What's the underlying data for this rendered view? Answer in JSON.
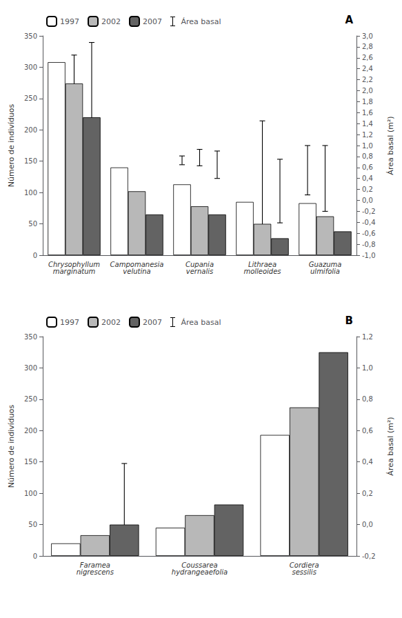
{
  "chart_data": [
    {
      "type": "bar",
      "annotations": [
        "A"
      ],
      "categories": [
        "Chrysophyllum\nmarginatum",
        "Campomanesia\nvelutina",
        "Cupania\nvernalis",
        "Lithraea\nmolleoides",
        "Guazuma\nulmifolia"
      ],
      "series": [
        {
          "name": "1997",
          "color": "#ffffff",
          "values": [
            308,
            140,
            113,
            85,
            83
          ]
        },
        {
          "name": "2002",
          "color": "#b8b8b8",
          "values": [
            274,
            102,
            78,
            50,
            62
          ]
        },
        {
          "name": "2007",
          "color": "#636363",
          "values": [
            220,
            65,
            65,
            27,
            38
          ]
        }
      ],
      "error_bars": {
        "name": "Área basal",
        "axis": "y2",
        "values": [
          [
            2.0,
            null,
            0.73,
            null,
            0.55
          ],
          [
            2.1,
            null,
            0.78,
            0.32,
            0.4
          ],
          [
            1.88,
            null,
            0.65,
            0.17,
            null
          ]
        ],
        "errors": [
          [
            0.3,
            null,
            0.08,
            null,
            0.45
          ],
          [
            0.55,
            null,
            0.15,
            1.13,
            0.6
          ],
          [
            1.0,
            null,
            0.25,
            0.58,
            null
          ]
        ]
      },
      "ylabel": "Número de indivíduos",
      "y2label": "Área basal (m²)",
      "ylim": [
        0,
        350
      ],
      "yticks": [
        0,
        50,
        100,
        150,
        200,
        250,
        300,
        350
      ],
      "y2lim": [
        -1.0,
        3.0
      ],
      "y2ticks": [
        {
          "value": -1.0,
          "label": "-1,0"
        },
        {
          "value": -0.8,
          "label": "-0,8"
        },
        {
          "value": -0.6,
          "label": "-0,6"
        },
        {
          "value": -0.4,
          "label": "-0,4"
        },
        {
          "value": -0.2,
          "label": "-0,2"
        },
        {
          "value": 0.0,
          "label": "0,0"
        },
        {
          "value": 0.2,
          "label": "0,2"
        },
        {
          "value": 0.4,
          "label": "0,4"
        },
        {
          "value": 0.6,
          "label": "0,6"
        },
        {
          "value": 0.8,
          "label": "0,8"
        },
        {
          "value": 1.0,
          "label": "1,0"
        },
        {
          "value": 1.2,
          "label": "1,2"
        },
        {
          "value": 1.4,
          "label": "1,4"
        },
        {
          "value": 1.6,
          "label": "1,6"
        },
        {
          "value": 1.8,
          "label": "1,8"
        },
        {
          "value": 2.0,
          "label": "2,0"
        },
        {
          "value": 2.2,
          "label": "2,2"
        },
        {
          "value": 2.4,
          "label": "2,4"
        },
        {
          "value": 2.6,
          "label": "2,6"
        },
        {
          "value": 2.8,
          "label": "2,8"
        },
        {
          "value": 3.0,
          "label": "3,0"
        }
      ],
      "legend": "upper left",
      "grid": false
    },
    {
      "type": "bar",
      "annotations": [
        "B"
      ],
      "categories": [
        "Faramea\nnigrescens",
        "Coussarea\nhydrangeaefolia",
        "Cordiera\nsessilis"
      ],
      "series": [
        {
          "name": "1997",
          "color": "#ffffff",
          "values": [
            20,
            45,
            193
          ]
        },
        {
          "name": "2002",
          "color": "#b8b8b8",
          "values": [
            33,
            65,
            237
          ]
        },
        {
          "name": "2007",
          "color": "#636363",
          "values": [
            50,
            82,
            325
          ]
        }
      ],
      "error_bars": {
        "name": "Área basal",
        "axis": "y2",
        "values": [
          [
            null,
            null,
            null
          ],
          [
            null,
            null,
            null
          ],
          [
            0.17,
            null,
            null
          ]
        ],
        "errors": [
          [
            null,
            null,
            null
          ],
          [
            null,
            null,
            null
          ],
          [
            0.22,
            null,
            null
          ]
        ]
      },
      "ylabel": "Número de indivíduos",
      "y2label": "Área basal (m²)",
      "ylim": [
        0,
        350
      ],
      "yticks": [
        0,
        50,
        100,
        150,
        200,
        250,
        300,
        350
      ],
      "y2lim": [
        -0.2,
        1.2
      ],
      "y2ticks": [
        {
          "value": -0.2,
          "label": "-0,2"
        },
        {
          "value": 0.0,
          "label": "0,0"
        },
        {
          "value": 0.2,
          "label": "0,2"
        },
        {
          "value": 0.4,
          "label": "0,4"
        },
        {
          "value": 0.6,
          "label": "0,6"
        },
        {
          "value": 0.8,
          "label": "0,8"
        },
        {
          "value": 1.0,
          "label": "1,0"
        },
        {
          "value": 1.2,
          "label": "1,2"
        }
      ],
      "legend": "upper left",
      "grid": false
    }
  ]
}
